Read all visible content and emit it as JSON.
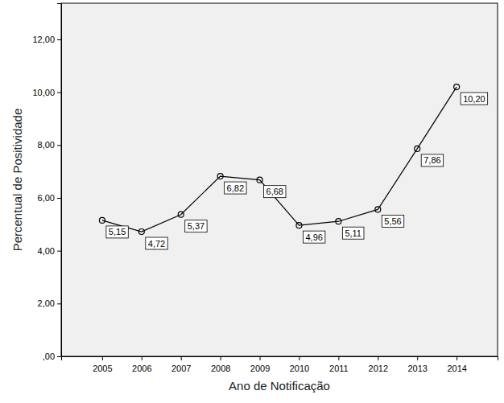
{
  "chart_data": {
    "type": "line",
    "xlabel": "Ano de Notificação",
    "ylabel": "Percentual de Positividade",
    "categories": [
      "2005",
      "2006",
      "2007",
      "2008",
      "2009",
      "2010",
      "2011",
      "2012",
      "2013",
      "2014"
    ],
    "values": [
      5.15,
      4.72,
      5.37,
      6.82,
      6.68,
      4.96,
      5.11,
      5.56,
      7.86,
      10.2
    ],
    "value_labels": [
      "5,15",
      "4,72",
      "5,37",
      "6,82",
      "6,68",
      "4,96",
      "5,11",
      "5,56",
      "7,86",
      "10,20"
    ],
    "ylim": [
      0,
      13.37
    ],
    "yticks": [
      {
        "value": 0,
        "label": ",00"
      },
      {
        "value": 2,
        "label": "2,00"
      },
      {
        "value": 4,
        "label": "4,00"
      },
      {
        "value": 6,
        "label": "6,00"
      },
      {
        "value": 8,
        "label": "8,00"
      },
      {
        "value": 10,
        "label": "10,00"
      },
      {
        "value": 12,
        "label": "12,00"
      }
    ],
    "color": "#000000",
    "marker": "circle",
    "data_labels": true,
    "grid": false
  }
}
